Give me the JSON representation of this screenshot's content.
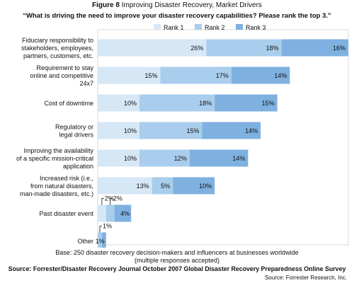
{
  "figure_label": "Figure 8",
  "figure_title": "Improving Disaster Recovery, Market Drivers",
  "question": "“What is driving the need to improve your disaster recovery capabilities? Please rank the top 3.”",
  "base_line1": "Base: 250 disaster recovery decision-makers and influencers at businesses worldwide",
  "base_line2": "(multiple responses accepted)",
  "source_line": "Source: Forrester/Disaster Recovery Journal October 2007 Global Disaster Recovery Preparedness Online Survey",
  "credit": "Source: Forrester Research, Inc.",
  "colors": {
    "rank1": "#d6e7f6",
    "rank2": "#a9cdec",
    "rank3": "#7fb1e0",
    "grid": "#d9d9d9"
  },
  "chart_data": {
    "type": "bar",
    "orientation": "horizontal",
    "stacked": true,
    "title": "“What is driving the need to improve your disaster recovery capabilities? Please rank the top 3.”",
    "categories": [
      [
        "Fiduciary responsibility to",
        "stakeholders, employees,",
        "partners, customers, etc."
      ],
      [
        "Requirement to stay",
        "online and competitive",
        "24x7"
      ],
      [
        "Cost of downtime"
      ],
      [
        "Regulatory or",
        "legal drivers"
      ],
      [
        "Improving the availability",
        "of a specific mission-critical",
        "application"
      ],
      [
        "Increased risk (i.e.,",
        "from natural disasters,",
        "man-made disasters, etc.)"
      ],
      [
        "Past disaster event"
      ],
      [
        "Other"
      ]
    ],
    "series": [
      {
        "name": "Rank 1",
        "values": [
          26,
          15,
          10,
          10,
          10,
          13,
          2,
          0
        ]
      },
      {
        "name": "Rank 2",
        "values": [
          18,
          17,
          18,
          15,
          12,
          5,
          2,
          1
        ]
      },
      {
        "name": "Rank 3",
        "values": [
          16,
          14,
          15,
          14,
          14,
          10,
          4,
          1
        ]
      }
    ],
    "data_labels": [
      [
        "26%",
        "18%",
        "16%"
      ],
      [
        "15%",
        "17%",
        "14%"
      ],
      [
        "10%",
        "18%",
        "15%"
      ],
      [
        "10%",
        "15%",
        "14%"
      ],
      [
        "10%",
        "12%",
        "14%"
      ],
      [
        "13%",
        "5%",
        "10%"
      ],
      [
        "2%",
        "2%",
        "4%"
      ],
      [
        "",
        "1%",
        "1%"
      ]
    ],
    "legend_position": "top",
    "xlim": [
      0,
      60
    ],
    "grid": false
  }
}
